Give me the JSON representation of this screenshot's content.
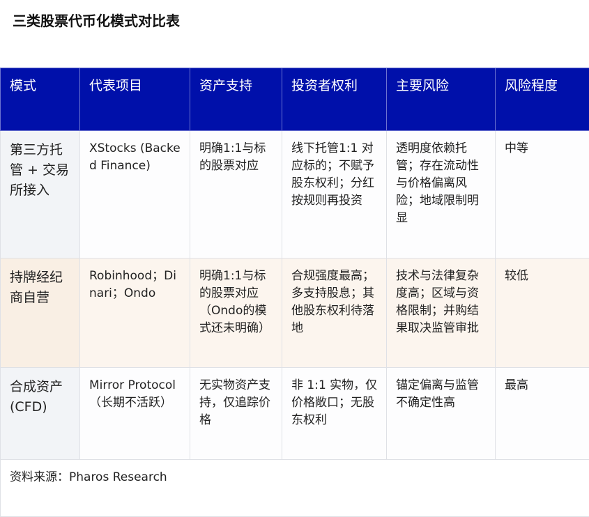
{
  "title": "三类股票代币化模式对比表",
  "colors": {
    "header_bg": "#0010aa",
    "header_text": "#ffffff",
    "row_highlight": "#fcf5ee",
    "first_col_bg": "#f2f4f7"
  },
  "table": {
    "headers": [
      "模式",
      "代表项目",
      "资产支持",
      "投资者权利",
      "主要风险",
      "风险程度"
    ],
    "rows": [
      [
        "第三方托管 + 交易所接入",
        "XStocks (Backed Finance)",
        "明确1:1与标的股票对应",
        "线下托管1:1 对应标的；不赋予股东权利；分红按规则再投资",
        "透明度依赖托管；存在流动性与价格偏离风险；地域限制明显",
        "中等"
      ],
      [
        "持牌经纪商自营",
        "Robinhood；Dinari；Ondo",
        "明确1:1与标的股票对应（Ondo的模式还未明确）",
        "合规强度最高；多支持股息；其他股东权利待落地",
        "技术与法律复杂度高；区域与资格限制；并购结果取决监管审批",
        "较低"
      ],
      [
        "合成资产 (CFD)",
        "Mirror Protocol（长期不活跃）",
        "无实物资产支持，仅追踪价格",
        "非 1:1 实物，仅价格敞口；无股东权利",
        "锚定偏离与监管不确定性高",
        "最高"
      ]
    ],
    "source": "资料来源：Pharos Research"
  }
}
